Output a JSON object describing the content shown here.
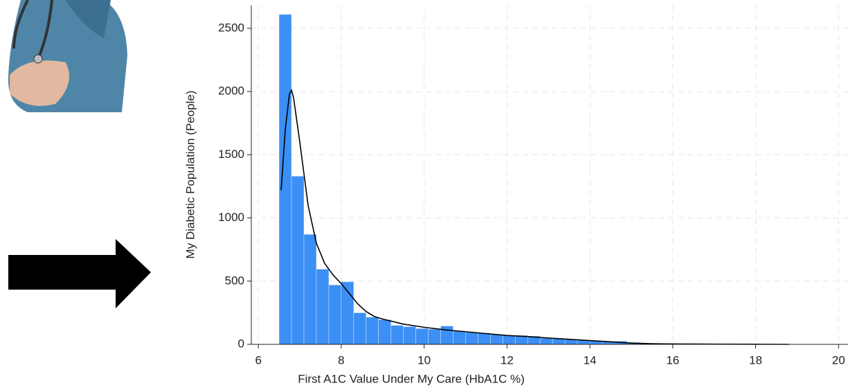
{
  "chart_data": {
    "type": "histogram",
    "xlabel": "First A1C Value Under My Care (HbA1C %)",
    "ylabel": "My Diabetic Population (People)",
    "bins": [
      6.5,
      6.8,
      7.1,
      7.4,
      7.7,
      8.0,
      8.3,
      8.6,
      8.9,
      9.2,
      9.5,
      9.8,
      10.1,
      10.4,
      10.7,
      11.0,
      11.3,
      11.6,
      11.9,
      12.2,
      12.5,
      12.8,
      13.1,
      13.4,
      13.7,
      14.0,
      14.3,
      14.6,
      14.9,
      15.2,
      15.5,
      15.8,
      16.1
    ],
    "values": [
      2610,
      1330,
      870,
      595,
      470,
      495,
      250,
      215,
      195,
      150,
      140,
      125,
      120,
      145,
      105,
      95,
      90,
      80,
      70,
      70,
      65,
      50,
      45,
      40,
      35,
      30,
      25,
      25,
      15,
      8,
      5,
      8
    ],
    "color": "#3b8ff5",
    "line": {
      "color": "#000000",
      "x": [
        6.55,
        6.65,
        6.75,
        6.8,
        6.85,
        7.0,
        7.2,
        7.4,
        7.6,
        7.8,
        8.0,
        8.2,
        8.4,
        8.6,
        8.8,
        9.0,
        9.5,
        10.0,
        10.5,
        11.0,
        11.5,
        12.0,
        12.5,
        13.0,
        13.5,
        14.0,
        14.5,
        15.0,
        15.5,
        16.0,
        17.0,
        18.0,
        18.8
      ],
      "y": [
        1220,
        1700,
        1980,
        2010,
        1950,
        1600,
        1100,
        800,
        640,
        550,
        480,
        400,
        320,
        260,
        220,
        200,
        160,
        135,
        115,
        100,
        85,
        70,
        62,
        50,
        40,
        30,
        20,
        10,
        5,
        3,
        2,
        1,
        0
      ]
    },
    "xlim": [
      5.83,
      20.23
    ],
    "ylim": [
      0,
      2680
    ],
    "xticks": [
      6,
      8,
      10,
      12,
      14,
      16,
      18,
      20
    ],
    "yticks": [
      0,
      500,
      1000,
      1500,
      2000,
      2500
    ],
    "grid": true
  }
}
